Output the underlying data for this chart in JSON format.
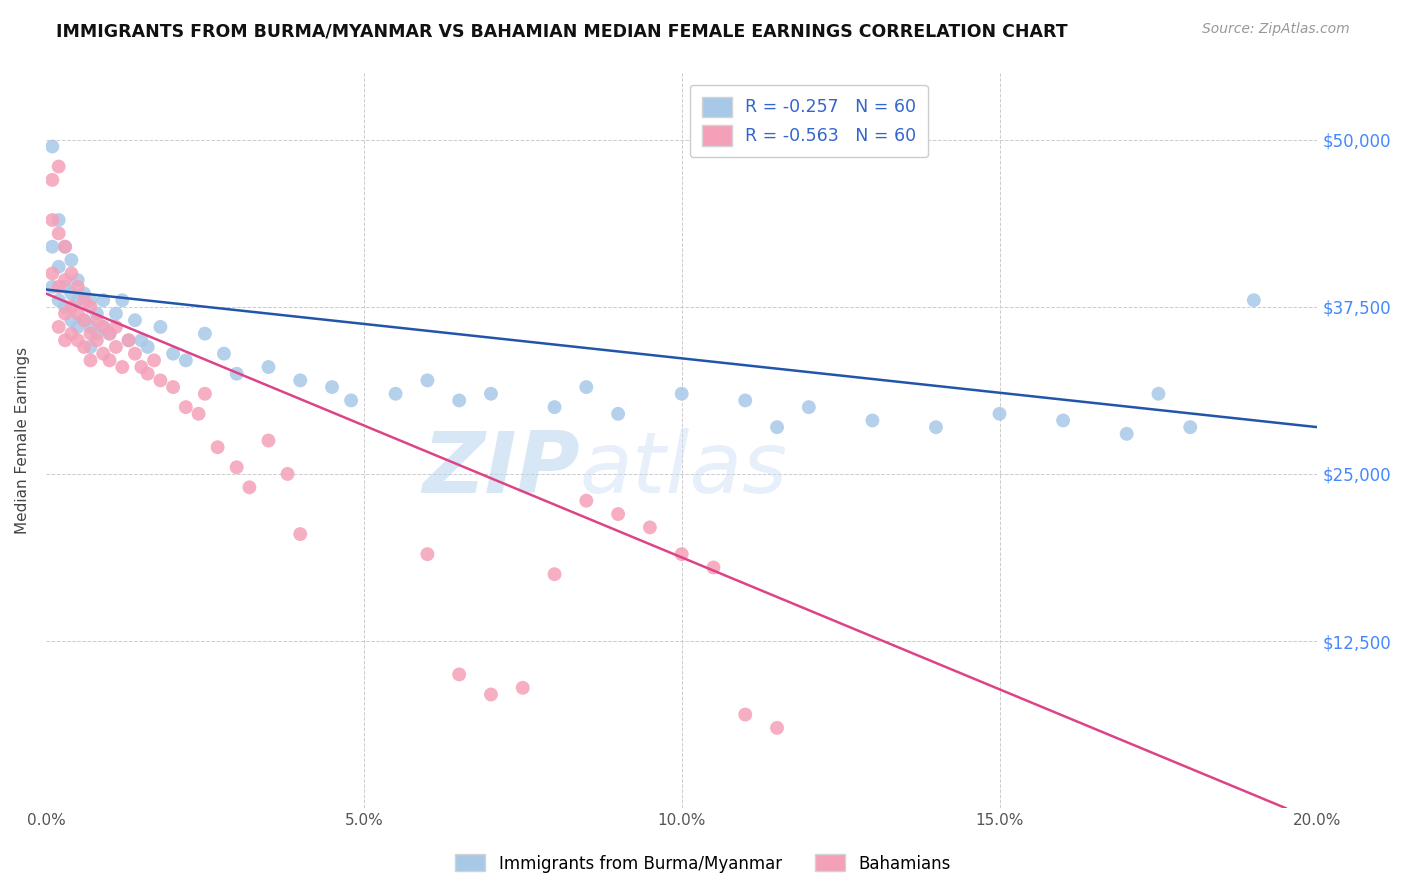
{
  "title": "IMMIGRANTS FROM BURMA/MYANMAR VS BAHAMIAN MEDIAN FEMALE EARNINGS CORRELATION CHART",
  "source": "Source: ZipAtlas.com",
  "ylabel": "Median Female Earnings",
  "xlim": [
    0.0,
    0.2
  ],
  "ylim": [
    0,
    55000
  ],
  "xtick_labels": [
    "0.0%",
    "",
    "5.0%",
    "",
    "10.0%",
    "",
    "15.0%",
    "",
    "20.0%"
  ],
  "xtick_vals": [
    0.0,
    0.025,
    0.05,
    0.075,
    0.1,
    0.125,
    0.15,
    0.175,
    0.2
  ],
  "ytick_vals": [
    0,
    12500,
    25000,
    37500,
    50000
  ],
  "ytick_labels": [
    "",
    "$12,500",
    "$25,000",
    "$37,500",
    "$50,000"
  ],
  "grid_color": "#cccccc",
  "background_color": "#ffffff",
  "watermark_text": "ZIPatlas",
  "legend_r1": "R = -0.257   N = 60",
  "legend_r2": "R = -0.563   N = 60",
  "legend_label1": "Immigrants from Burma/Myanmar",
  "legend_label2": "Bahamians",
  "blue_color": "#a8c8e8",
  "pink_color": "#f4a0b8",
  "blue_line_color": "#2255aa",
  "pink_line_color": "#dd4488",
  "blue_scatter_x": [
    0.001,
    0.001,
    0.001,
    0.002,
    0.002,
    0.002,
    0.003,
    0.003,
    0.003,
    0.004,
    0.004,
    0.004,
    0.005,
    0.005,
    0.005,
    0.006,
    0.006,
    0.007,
    0.007,
    0.007,
    0.008,
    0.008,
    0.009,
    0.009,
    0.01,
    0.011,
    0.012,
    0.013,
    0.014,
    0.015,
    0.016,
    0.018,
    0.02,
    0.022,
    0.025,
    0.028,
    0.03,
    0.035,
    0.04,
    0.045,
    0.048,
    0.055,
    0.06,
    0.065,
    0.07,
    0.08,
    0.085,
    0.09,
    0.1,
    0.11,
    0.115,
    0.12,
    0.13,
    0.14,
    0.15,
    0.16,
    0.17,
    0.175,
    0.18,
    0.19
  ],
  "blue_scatter_y": [
    49500,
    42000,
    39000,
    44000,
    40500,
    38000,
    42000,
    39000,
    37500,
    41000,
    38500,
    36500,
    39500,
    38000,
    36000,
    38500,
    36500,
    38000,
    36000,
    34500,
    37000,
    35500,
    38000,
    36000,
    35500,
    37000,
    38000,
    35000,
    36500,
    35000,
    34500,
    36000,
    34000,
    33500,
    35500,
    34000,
    32500,
    33000,
    32000,
    31500,
    30500,
    31000,
    32000,
    30500,
    31000,
    30000,
    31500,
    29500,
    31000,
    30500,
    28500,
    30000,
    29000,
    28500,
    29500,
    29000,
    28000,
    31000,
    28500,
    38000
  ],
  "pink_scatter_x": [
    0.001,
    0.001,
    0.001,
    0.002,
    0.002,
    0.002,
    0.002,
    0.003,
    0.003,
    0.003,
    0.003,
    0.004,
    0.004,
    0.004,
    0.005,
    0.005,
    0.005,
    0.006,
    0.006,
    0.006,
    0.007,
    0.007,
    0.007,
    0.008,
    0.008,
    0.009,
    0.009,
    0.01,
    0.01,
    0.011,
    0.011,
    0.012,
    0.013,
    0.014,
    0.015,
    0.016,
    0.017,
    0.018,
    0.02,
    0.022,
    0.024,
    0.025,
    0.027,
    0.03,
    0.032,
    0.035,
    0.038,
    0.04,
    0.06,
    0.065,
    0.07,
    0.075,
    0.08,
    0.085,
    0.09,
    0.095,
    0.1,
    0.105,
    0.11,
    0.115
  ],
  "pink_scatter_y": [
    47000,
    44000,
    40000,
    48000,
    43000,
    39000,
    36000,
    42000,
    39500,
    37000,
    35000,
    40000,
    37500,
    35500,
    39000,
    37000,
    35000,
    38000,
    36500,
    34500,
    37500,
    35500,
    33500,
    36500,
    35000,
    36000,
    34000,
    35500,
    33500,
    36000,
    34500,
    33000,
    35000,
    34000,
    33000,
    32500,
    33500,
    32000,
    31500,
    30000,
    29500,
    31000,
    27000,
    25500,
    24000,
    27500,
    25000,
    20500,
    19000,
    10000,
    8500,
    9000,
    17500,
    23000,
    22000,
    21000,
    19000,
    18000,
    7000,
    6000
  ],
  "blue_trend_x0": 0.0,
  "blue_trend_y0": 38800,
  "blue_trend_x1": 0.2,
  "blue_trend_y1": 28500,
  "pink_trend_x0": 0.0,
  "pink_trend_y0": 38500,
  "pink_trend_x1": 0.195,
  "pink_trend_y1": 0
}
